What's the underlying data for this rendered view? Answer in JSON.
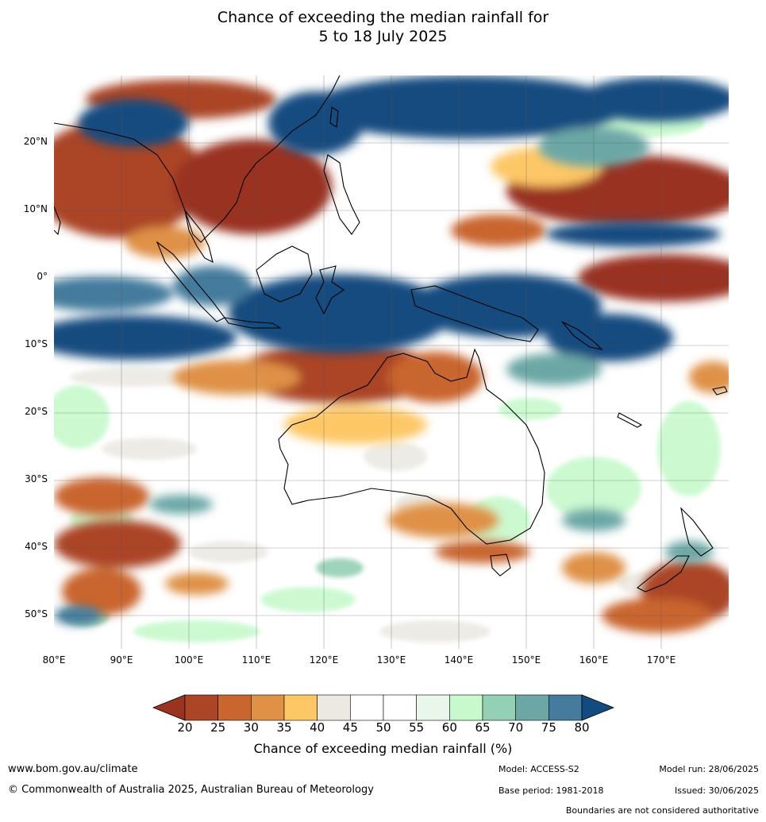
{
  "title": {
    "line1": "Chance of exceeding the median rainfall for",
    "line2": "5 to 18 July 2025"
  },
  "map": {
    "lat_labels": [
      "20°N",
      "10°N",
      "0°",
      "10°S",
      "20°S",
      "30°S",
      "40°S",
      "50°S"
    ],
    "lon_labels": [
      "80°E",
      "90°E",
      "100°E",
      "110°E",
      "120°E",
      "130°E",
      "140°E",
      "150°E",
      "160°E",
      "170°E"
    ],
    "extent": {
      "lon": [
        80,
        180
      ],
      "lat": [
        -55,
        30
      ]
    }
  },
  "colorbar": {
    "ticks": [
      "20",
      "25",
      "30",
      "35",
      "40",
      "45",
      "50",
      "55",
      "60",
      "65",
      "70",
      "75",
      "80"
    ],
    "colors": [
      "#9a3320",
      "#ab4525",
      "#c9652e",
      "#df9146",
      "#fdc766",
      "#ece9e3",
      "#ffffff",
      "#ffffff",
      "#e9f7ea",
      "#c7f9cc",
      "#94d0b4",
      "#6ca7a6",
      "#457b9d",
      "#124b80"
    ],
    "label": "Chance of exceeding median rainfall (%)"
  },
  "footer": {
    "website": "www.bom.gov.au/climate",
    "copyright": "© Commonwealth of Australia 2025, Australian Bureau of Meteorology",
    "model": "Model: ACCESS-S2",
    "base_period": "Base period: 1981-2018",
    "model_run": "Model run: 28/06/2025",
    "issued": "Issued: 30/06/2025",
    "disclaimer": "Boundaries are not considered authoritative"
  }
}
